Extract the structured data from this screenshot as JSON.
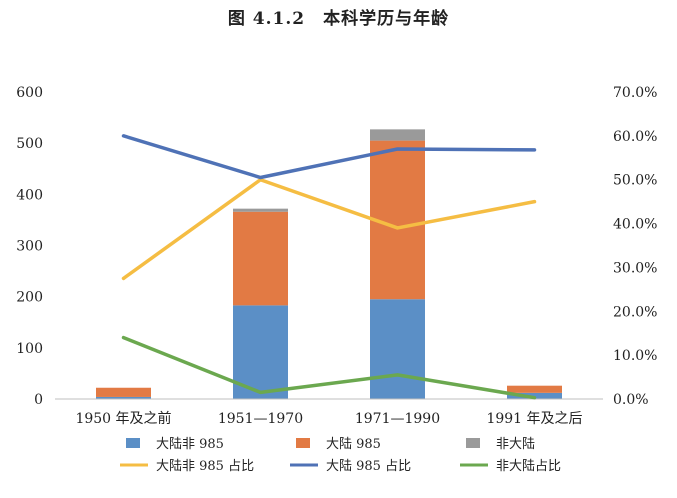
{
  "chart_data": {
    "type": "bar",
    "title": "图 4.1.2　本科学历与年龄",
    "categories": [
      "1950 年及之前",
      "1951—1970",
      "1971—1990",
      "1991 年及之后"
    ],
    "series": [
      {
        "name": "大陆非 985",
        "kind": "bar",
        "axis": "left",
        "color": "#5B8FC6",
        "values": [
          4,
          183,
          195,
          12
        ]
      },
      {
        "name": "大陆 985",
        "kind": "bar",
        "axis": "left",
        "color": "#E27A44",
        "values": [
          18,
          183,
          310,
          14
        ]
      },
      {
        "name": "非大陆",
        "kind": "bar",
        "axis": "left",
        "color": "#9A9A9A",
        "values": [
          0,
          6,
          22,
          0
        ]
      },
      {
        "name": "大陆非 985 占比",
        "kind": "line",
        "axis": "right",
        "color": "#F5BD43",
        "values": [
          27.5,
          50.0,
          39.0,
          45.0
        ]
      },
      {
        "name": "大陆 985 占比",
        "kind": "line",
        "axis": "right",
        "color": "#4F72B6",
        "values": [
          60.0,
          50.5,
          57.0,
          56.8
        ]
      },
      {
        "name": "非大陆占比",
        "kind": "line",
        "axis": "right",
        "color": "#6BA84F",
        "values": [
          14.0,
          1.5,
          5.5,
          0.3
        ]
      }
    ],
    "y_left": {
      "min": 0,
      "max": 600,
      "ticks": [
        "0",
        "100",
        "200",
        "300",
        "400",
        "500",
        "600"
      ]
    },
    "y_right": {
      "min": 0,
      "max": 70,
      "ticks": [
        "0.0%",
        "10.0%",
        "20.0%",
        "30.0%",
        "40.0%",
        "50.0%",
        "60.0%",
        "70.0%"
      ]
    },
    "grid": false,
    "legend_position": "bottom"
  }
}
